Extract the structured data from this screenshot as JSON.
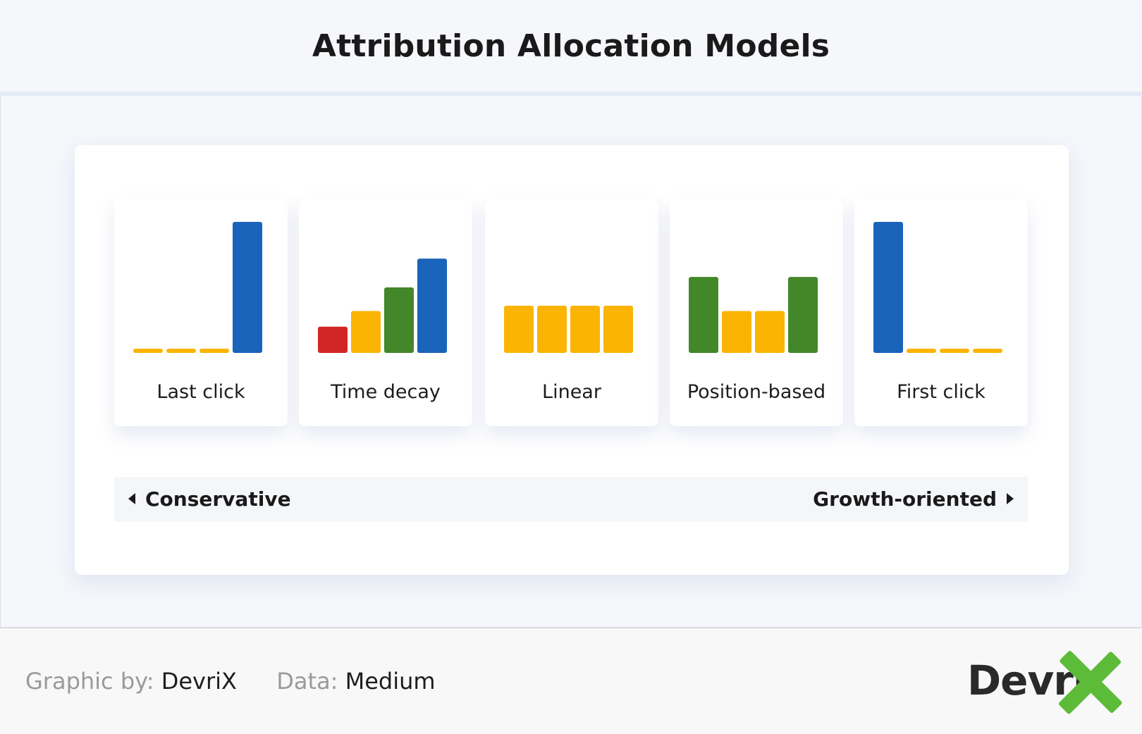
{
  "title": "Attribution Allocation Models",
  "chart_data": {
    "type": "bar",
    "max_value": 1,
    "colors": {
      "blue": "#1a63ba",
      "yellow": "#fbb304",
      "green": "#43872a",
      "red": "#d22525"
    },
    "models": [
      {
        "label": "Last click",
        "values": [
          0,
          0,
          0,
          1
        ],
        "colors": [
          "yellow",
          "yellow",
          "yellow",
          "blue"
        ]
      },
      {
        "label": "Time decay",
        "values": [
          0.2,
          0.32,
          0.5,
          0.72
        ],
        "colors": [
          "red",
          "yellow",
          "green",
          "blue"
        ]
      },
      {
        "label": "Linear",
        "values": [
          0.36,
          0.36,
          0.36,
          0.36
        ],
        "colors": [
          "yellow",
          "yellow",
          "yellow",
          "yellow"
        ]
      },
      {
        "label": "Position-based",
        "values": [
          0.58,
          0.32,
          0.32,
          0.58
        ],
        "colors": [
          "green",
          "yellow",
          "yellow",
          "green"
        ]
      },
      {
        "label": "First click",
        "values": [
          1,
          0,
          0,
          0
        ],
        "colors": [
          "blue",
          "yellow",
          "yellow",
          "yellow"
        ]
      }
    ]
  },
  "scale": {
    "left_label": "Conservative",
    "right_label": "Growth-oriented"
  },
  "footer": {
    "graphic_label": "Graphic by:",
    "graphic_value": "DevriX",
    "data_label": "Data:",
    "data_value": "Medium"
  },
  "logo": {
    "text": "Devri",
    "mark": "X",
    "mark_color": "#5cbb38"
  }
}
